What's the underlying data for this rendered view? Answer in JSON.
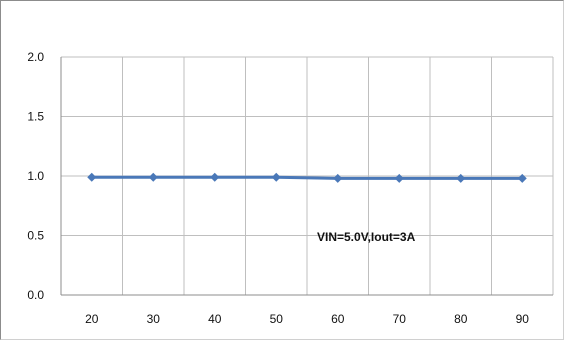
{
  "chart_data": {
    "type": "line",
    "title": "",
    "xlabel": "",
    "ylabel": "",
    "x": [
      20,
      30,
      40,
      50,
      60,
      70,
      80,
      90
    ],
    "series": [
      {
        "values": [
          0.99,
          0.99,
          0.99,
          0.99,
          0.98,
          0.98,
          0.98,
          0.98
        ],
        "color": "#4a78b8"
      }
    ],
    "ylim": [
      0.0,
      2.0
    ],
    "yticks": [
      "0.0",
      "0.5",
      "1.0",
      "1.5",
      "2.0"
    ],
    "xticks": [
      "20",
      "30",
      "40",
      "50",
      "60",
      "70",
      "80",
      "90"
    ],
    "grid": true,
    "legend": "none",
    "annotation": "VIN=5.0V,Iout=3A"
  }
}
